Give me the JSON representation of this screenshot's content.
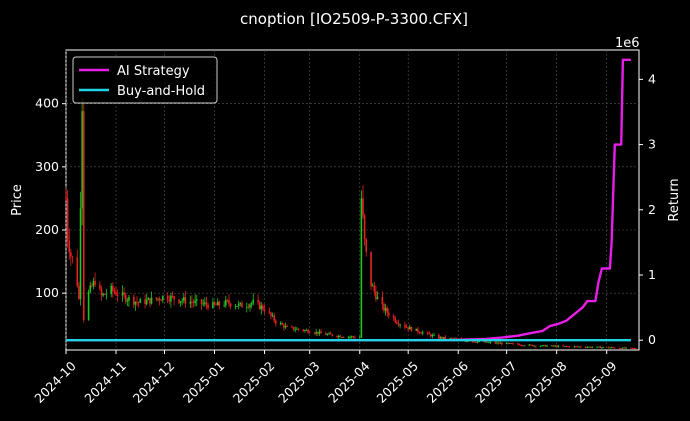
{
  "chart_data": {
    "type": "candlestick+line",
    "title": "cnoption [IO2509-P-3300.CFX]",
    "ylabel_left": "Price",
    "ylabel_right": "Return",
    "right_axis_multiplier": "1e6",
    "x_tick_labels": [
      "2024-10",
      "2024-11",
      "2024-12",
      "2025-01",
      "2025-02",
      "2025-03",
      "2025-04",
      "2025-05",
      "2025-06",
      "2025-07",
      "2025-08",
      "2025-09"
    ],
    "y_left_ticks": [
      100,
      200,
      300,
      400
    ],
    "y_left_range": [
      10,
      485
    ],
    "y_right_ticks": [
      0,
      1,
      2,
      3,
      4
    ],
    "y_right_range": [
      -0.15,
      4.45
    ],
    "grid": true,
    "legend_position": "top-left",
    "legend": [
      {
        "name": "AI Strategy",
        "color": "#e61ee6"
      },
      {
        "name": "Buy-and-Hold",
        "color": "#22d3e6"
      }
    ],
    "up_color": "#22c422",
    "down_color": "#e62222",
    "x_range": [
      0,
      355
    ],
    "month_starts": [
      0,
      31,
      61,
      92,
      123,
      151,
      182,
      212,
      243,
      273,
      304,
      335
    ],
    "price_anchors": [
      [
        0,
        250
      ],
      [
        1,
        190
      ],
      [
        3,
        160
      ],
      [
        6,
        140
      ],
      [
        8,
        90
      ],
      [
        10,
        410
      ],
      [
        11,
        60
      ],
      [
        14,
        100
      ],
      [
        18,
        120
      ],
      [
        22,
        95
      ],
      [
        28,
        105
      ],
      [
        35,
        95
      ],
      [
        45,
        85
      ],
      [
        55,
        90
      ],
      [
        61,
        95
      ],
      [
        70,
        90
      ],
      [
        80,
        85
      ],
      [
        92,
        80
      ],
      [
        100,
        85
      ],
      [
        108,
        80
      ],
      [
        116,
        85
      ],
      [
        123,
        75
      ],
      [
        130,
        55
      ],
      [
        137,
        45
      ],
      [
        151,
        40
      ],
      [
        160,
        35
      ],
      [
        170,
        32
      ],
      [
        182,
        30
      ],
      [
        183,
        250
      ],
      [
        185,
        180
      ],
      [
        188,
        120
      ],
      [
        195,
        80
      ],
      [
        205,
        55
      ],
      [
        212,
        45
      ],
      [
        230,
        30
      ],
      [
        243,
        26
      ],
      [
        260,
        22
      ],
      [
        273,
        20
      ],
      [
        290,
        17
      ],
      [
        304,
        16
      ],
      [
        320,
        15
      ],
      [
        335,
        14
      ],
      [
        355,
        12
      ]
    ],
    "series": [
      {
        "name": "AI Strategy",
        "axis": "right",
        "points": [
          [
            0,
            0
          ],
          [
            212,
            0
          ],
          [
            240,
            0.005
          ],
          [
            260,
            0.02
          ],
          [
            270,
            0.04
          ],
          [
            280,
            0.07
          ],
          [
            290,
            0.12
          ],
          [
            295,
            0.14
          ],
          [
            300,
            0.22
          ],
          [
            305,
            0.25
          ],
          [
            310,
            0.3
          ],
          [
            315,
            0.4
          ],
          [
            320,
            0.5
          ],
          [
            323,
            0.6
          ],
          [
            328,
            0.6
          ],
          [
            330,
            0.9
          ],
          [
            332,
            1.1
          ],
          [
            337,
            1.1
          ],
          [
            338,
            1.5
          ],
          [
            340,
            3.0
          ],
          [
            344,
            3.0
          ],
          [
            345,
            4.3
          ],
          [
            350,
            4.3
          ]
        ]
      },
      {
        "name": "Buy-and-Hold",
        "axis": "right",
        "points": [
          [
            0,
            0
          ],
          [
            350,
            0
          ]
        ]
      }
    ]
  }
}
